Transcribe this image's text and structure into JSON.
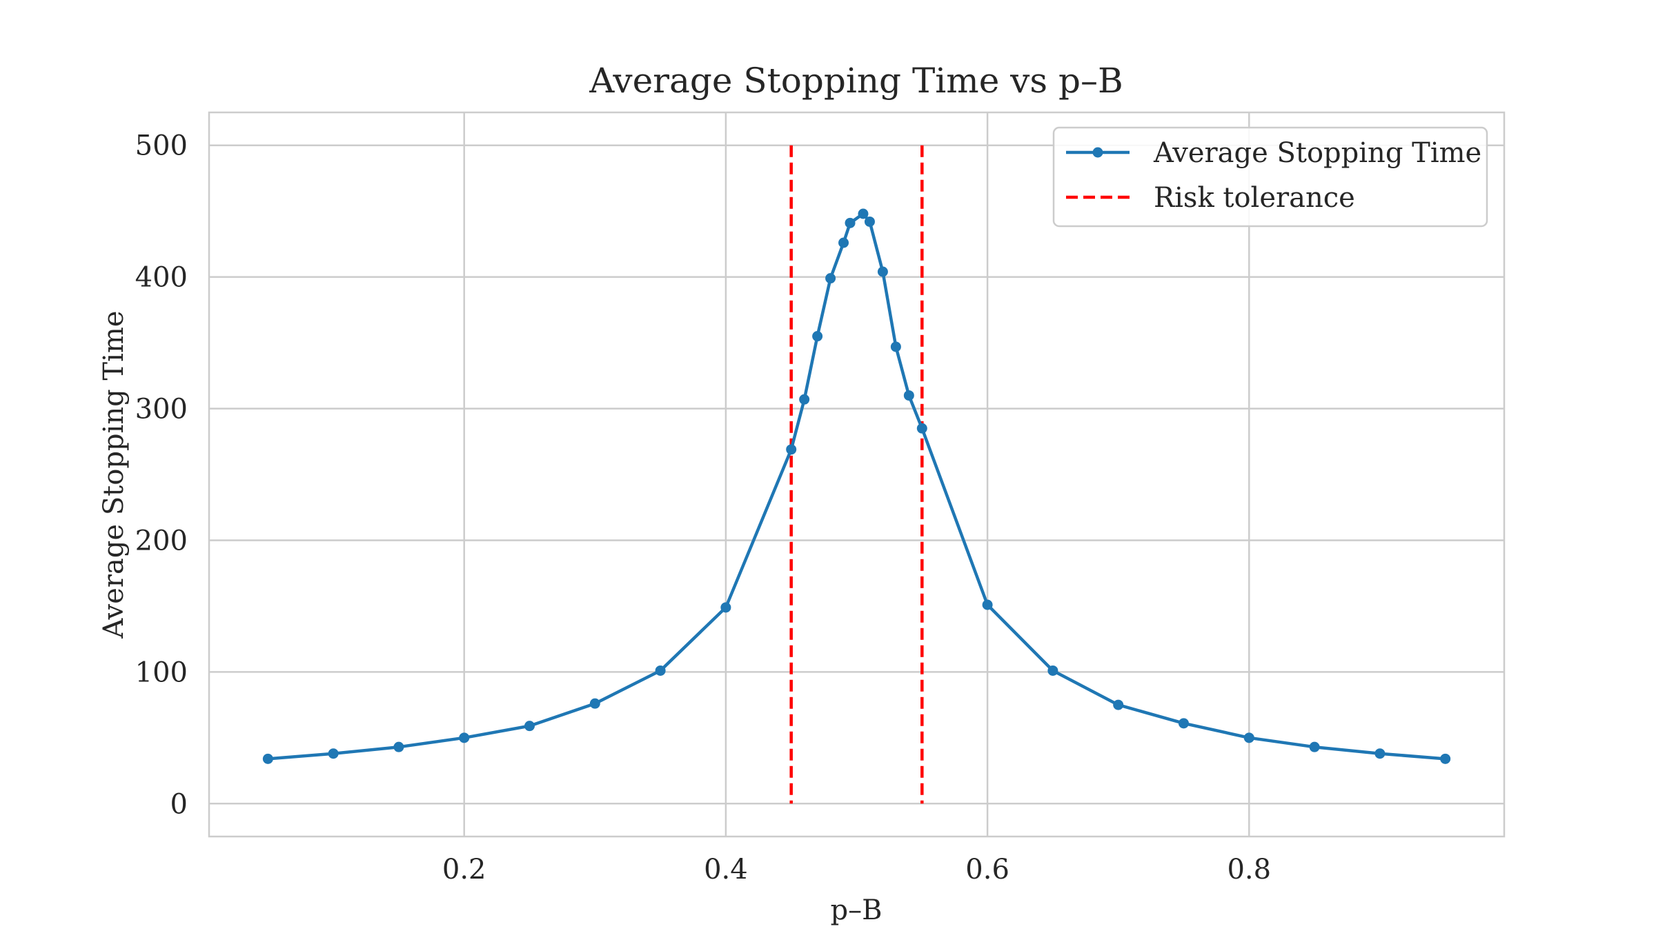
{
  "chart_data": {
    "type": "line",
    "title": "Average Stopping Time vs p_B",
    "title_display": "Average Stopping Time vs p–B",
    "xlabel": "p_B",
    "xlabel_display": "p–B",
    "ylabel": "Average Stopping Time",
    "xlim": [
      0.005,
      0.995
    ],
    "ylim": [
      -25,
      525
    ],
    "xticks": [
      0.2,
      0.4,
      0.6,
      0.8
    ],
    "xtick_labels": [
      "0.2",
      "0.4",
      "0.6",
      "0.8"
    ],
    "yticks": [
      0,
      100,
      200,
      300,
      400,
      500
    ],
    "ytick_labels": [
      "0",
      "100",
      "200",
      "300",
      "400",
      "500"
    ],
    "grid": true,
    "legend_position": "top-right",
    "series": [
      {
        "name": "Average Stopping Time",
        "color": "#1f77b4",
        "style": "line-with-markers",
        "x": [
          0.05,
          0.1,
          0.15,
          0.2,
          0.25,
          0.3,
          0.35,
          0.4,
          0.45,
          0.46,
          0.47,
          0.48,
          0.49,
          0.495,
          0.505,
          0.51,
          0.52,
          0.53,
          0.54,
          0.55,
          0.6,
          0.65,
          0.7,
          0.75,
          0.8,
          0.85,
          0.9,
          0.95
        ],
        "y": [
          34,
          38,
          43,
          50,
          59,
          76,
          101,
          149,
          269,
          307,
          355,
          399,
          426,
          441,
          448,
          442,
          404,
          347,
          310,
          285,
          151,
          101,
          75,
          61,
          50,
          43,
          38,
          34
        ]
      }
    ],
    "reference_lines": {
      "name": "Risk tolerance",
      "color": "#ff0000",
      "style": "dashed",
      "orientation": "vertical",
      "x": [
        0.45,
        0.55
      ],
      "y_range": [
        0,
        500
      ]
    }
  }
}
